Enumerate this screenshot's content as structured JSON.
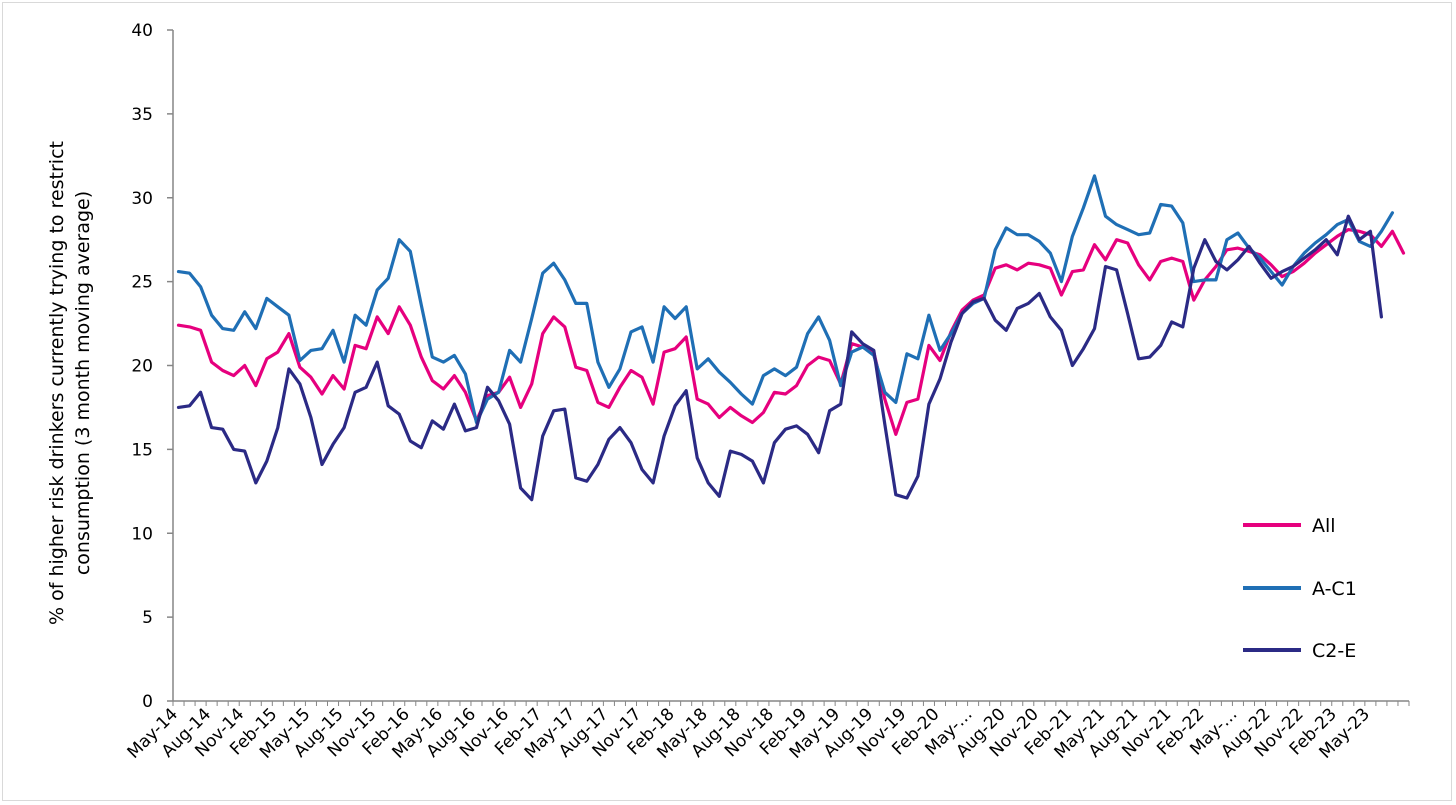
{
  "chart_data": {
    "type": "line",
    "title": "",
    "xlabel": "",
    "ylabel": "% of higher risk drinkers currently trying to restrict consumption (3 month moving average)",
    "ylabel_lines": [
      "% of higher risk drinkers currently trying to restrict",
      "consumption (3 month moving average)"
    ],
    "ylim": [
      0,
      40
    ],
    "yticks": [
      0,
      5,
      10,
      15,
      20,
      25,
      30,
      35,
      40
    ],
    "grid": false,
    "legend_position": "right",
    "x_tick_labels": [
      "May-14",
      "Aug-14",
      "Nov-14",
      "Feb-15",
      "May-15",
      "Aug-15",
      "Nov-15",
      "Feb-16",
      "May-16",
      "Aug-16",
      "Nov-16",
      "Feb-17",
      "May-17",
      "Aug-17",
      "Nov-17",
      "Feb-18",
      "May-18",
      "Aug-18",
      "Nov-18",
      "Feb-19",
      "May-19",
      "Aug-19",
      "Nov-19",
      "Feb-20",
      "May-…",
      "Aug-20",
      "Nov-20",
      "Feb-21",
      "May-21",
      "Aug-21",
      "Nov-21",
      "Feb-22",
      "May-…",
      "Aug-22",
      "Nov-22",
      "Feb-23",
      "May-23"
    ],
    "series": [
      {
        "name": "All",
        "color": "#e6007e",
        "values": [
          22.4,
          22.3,
          22.1,
          20.2,
          19.7,
          19.4,
          20.0,
          18.8,
          20.4,
          20.8,
          21.9,
          19.9,
          19.3,
          18.3,
          19.4,
          18.6,
          21.2,
          21.0,
          22.9,
          21.9,
          23.5,
          22.4,
          20.5,
          19.1,
          18.6,
          19.4,
          18.4,
          16.7,
          18.2,
          18.4,
          19.3,
          17.5,
          18.9,
          21.9,
          22.9,
          22.3,
          19.9,
          19.7,
          17.8,
          17.5,
          18.7,
          19.7,
          19.3,
          17.7,
          20.8,
          21.0,
          21.7,
          18.0,
          17.7,
          16.9,
          17.5,
          17.0,
          16.6,
          17.2,
          18.4,
          18.3,
          18.8,
          20.0,
          20.5,
          20.3,
          18.9,
          21.3,
          21.1,
          20.8,
          18.0,
          15.9,
          17.8,
          18.0,
          21.2,
          20.3,
          22.0,
          23.3,
          23.9,
          24.2,
          25.8,
          26.0,
          25.7,
          26.1,
          26.0,
          25.8,
          24.2,
          25.6,
          25.7,
          27.2,
          26.3,
          27.5,
          27.3,
          26.0,
          25.1,
          26.2,
          26.4,
          26.2,
          23.9,
          25.1,
          25.9,
          26.9,
          27.0,
          26.8,
          26.6,
          26.0,
          25.3,
          25.6,
          26.1,
          26.7,
          27.2,
          27.7,
          28.1,
          28.0,
          27.8,
          27.1,
          28.0,
          26.7
        ]
      },
      {
        "name": "A-C1",
        "color": "#1f6fb5",
        "values": [
          25.6,
          25.5,
          24.7,
          23.0,
          22.2,
          22.1,
          23.2,
          22.2,
          24.0,
          23.5,
          23.0,
          20.3,
          20.9,
          21.0,
          22.1,
          20.2,
          23.0,
          22.4,
          24.5,
          25.2,
          27.5,
          26.8,
          23.6,
          20.5,
          20.2,
          20.6,
          19.5,
          16.6,
          18.0,
          18.4,
          20.9,
          20.2,
          22.8,
          25.5,
          26.1,
          25.1,
          23.7,
          23.7,
          20.2,
          18.7,
          19.8,
          22.0,
          22.3,
          20.2,
          23.5,
          22.8,
          23.5,
          19.8,
          20.4,
          19.6,
          19.0,
          18.3,
          17.7,
          19.4,
          19.8,
          19.4,
          19.9,
          21.9,
          22.9,
          21.5,
          18.8,
          20.8,
          21.1,
          20.6,
          18.4,
          17.8,
          20.7,
          20.4,
          23.0,
          20.9,
          21.9,
          23.1,
          23.7,
          24.0,
          26.9,
          28.2,
          27.8,
          27.8,
          27.4,
          26.7,
          25.0,
          27.7,
          29.4,
          31.3,
          28.9,
          28.4,
          28.1,
          27.8,
          27.9,
          29.6,
          29.5,
          28.5,
          25.0,
          25.1,
          25.1,
          27.5,
          27.9,
          27.0,
          26.4,
          25.6,
          24.8,
          25.9,
          26.7,
          27.3,
          27.8,
          28.4,
          28.7,
          27.4,
          27.1,
          28.0,
          29.1
        ]
      },
      {
        "name": "C2-E",
        "color": "#2b2a85",
        "values": [
          17.5,
          17.6,
          18.4,
          16.3,
          16.2,
          15.0,
          14.9,
          13.0,
          14.3,
          16.3,
          19.8,
          18.9,
          16.9,
          14.1,
          15.3,
          16.3,
          18.4,
          18.7,
          20.2,
          17.6,
          17.1,
          15.5,
          15.1,
          16.7,
          16.2,
          17.7,
          16.1,
          16.3,
          18.7,
          17.9,
          16.5,
          12.7,
          12.0,
          15.8,
          17.3,
          17.4,
          13.3,
          13.1,
          14.1,
          15.6,
          16.3,
          15.4,
          13.8,
          13.0,
          15.8,
          17.6,
          18.5,
          14.5,
          13.0,
          12.2,
          14.9,
          14.7,
          14.3,
          13.0,
          15.4,
          16.2,
          16.4,
          15.9,
          14.8,
          17.3,
          17.7,
          22.0,
          21.3,
          20.9,
          16.5,
          12.3,
          12.1,
          13.4,
          17.7,
          19.2,
          21.4,
          23.1,
          23.8,
          24.0,
          22.7,
          22.1,
          23.4,
          23.7,
          24.3,
          22.9,
          22.1,
          20.0,
          21.0,
          22.2,
          25.9,
          25.7,
          23.1,
          20.4,
          20.5,
          21.2,
          22.6,
          22.3,
          25.8,
          27.5,
          26.2,
          25.7,
          26.3,
          27.1,
          26.1,
          25.2,
          25.6,
          25.9,
          26.4,
          26.9,
          27.5,
          26.6,
          28.9,
          27.5,
          28.0,
          22.9
        ]
      }
    ]
  }
}
